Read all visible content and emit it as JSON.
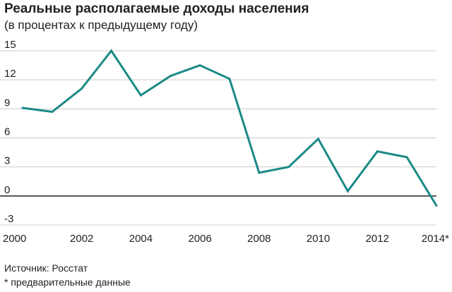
{
  "chart_data": {
    "type": "line",
    "title": "Реальные располагаемые доходы населения",
    "subtitle": "(в процентах к предыдущему году)",
    "xlabel": "",
    "ylabel": "",
    "x": [
      2000,
      2001,
      2002,
      2003,
      2004,
      2005,
      2006,
      2007,
      2008,
      2009,
      2010,
      2011,
      2012,
      2013,
      2014
    ],
    "series": [
      {
        "values": [
          9.1,
          8.7,
          11.1,
          15.0,
          10.4,
          12.4,
          13.5,
          12.1,
          2.4,
          3.0,
          5.9,
          0.5,
          4.6,
          4.0,
          -1.0
        ]
      }
    ],
    "x_tick_labels": [
      "2000",
      "2002",
      "2004",
      "2006",
      "2008",
      "2010",
      "2012",
      "2014*"
    ],
    "x_tick_values": [
      2000,
      2002,
      2004,
      2006,
      2008,
      2010,
      2012,
      2014
    ],
    "y_ticks": [
      15,
      12,
      9,
      6,
      3,
      0,
      -3
    ],
    "ylim": [
      -3,
      15
    ],
    "xlim": [
      2000,
      2014
    ],
    "grid": true,
    "line_color": "#1a8a86",
    "grid_color": "#cccccc",
    "zero_line_color": "#222222"
  },
  "footer": {
    "source": "Источник: Росстат",
    "note": "* предварительные данные"
  }
}
